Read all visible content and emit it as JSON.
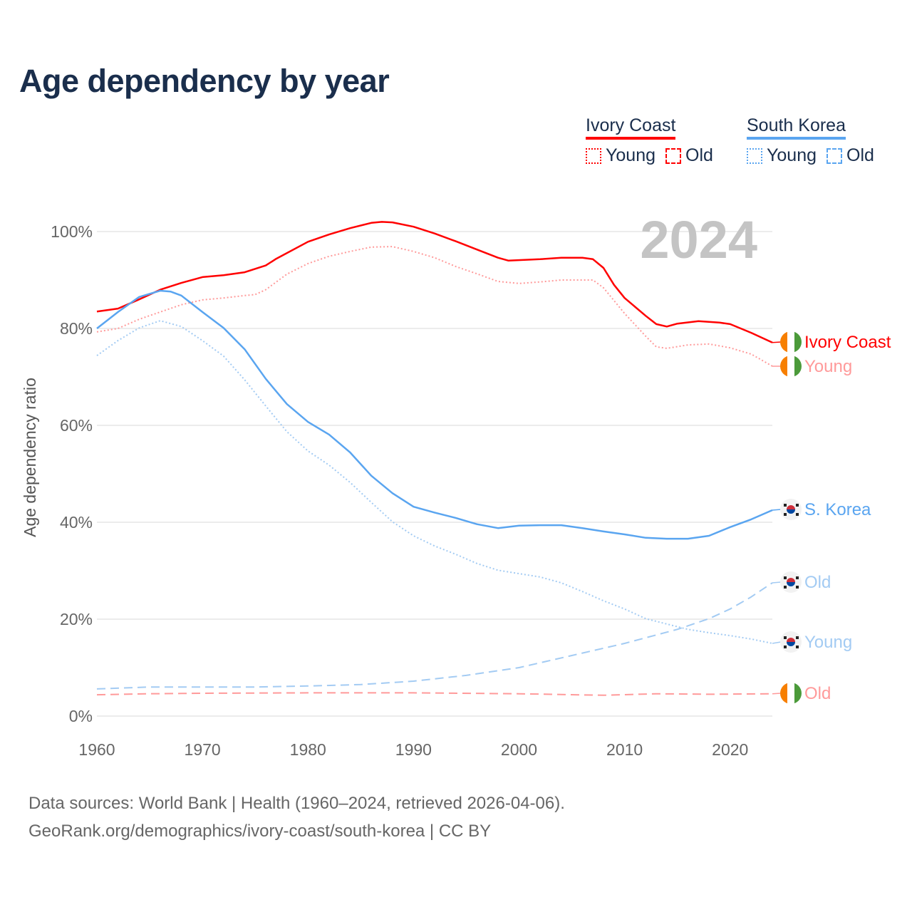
{
  "title": "Age dependency by year",
  "legend": {
    "groups": [
      {
        "country": "Ivory Coast",
        "color": "#ff0000",
        "items": [
          "Young",
          "Old"
        ]
      },
      {
        "country": "South Korea",
        "color": "#5aa5f0",
        "items": [
          "Young",
          "Old"
        ]
      }
    ]
  },
  "footer": {
    "line1": "Data sources: World Bank | Health (1960–2024, retrieved 2026-04-06).",
    "line2": "GeoRank.org/demographics/ivory-coast/south-korea | CC BY"
  },
  "chart_data": {
    "type": "line",
    "title": "Age dependency by year",
    "xlabel": "",
    "ylabel": "Age dependency ratio",
    "year_label": "2024",
    "xlim": [
      1960,
      2024
    ],
    "ylim": [
      0,
      100
    ],
    "x_ticks": [
      "1960",
      "1970",
      "1980",
      "1990",
      "2000",
      "2010",
      "2020"
    ],
    "y_ticks": [
      "0%",
      "20%",
      "40%",
      "60%",
      "80%",
      "100%"
    ],
    "grid": true,
    "series": [
      {
        "name": "Ivory Coast",
        "end_label": "Ivory Coast",
        "flag": "ivory-coast",
        "color": "#ff0000",
        "style": "solid",
        "x": [
          1960,
          1962,
          1964,
          1966,
          1968,
          1970,
          1972,
          1974,
          1976,
          1977,
          1980,
          1982,
          1984,
          1986,
          1987,
          1988,
          1990,
          1992,
          1994,
          1996,
          1998,
          1999,
          2002,
          2004,
          2006,
          2007,
          2008,
          2009,
          2010,
          2012,
          2013,
          2014,
          2015,
          2017,
          2019,
          2020,
          2021,
          2022,
          2024
        ],
        "y": [
          83.5,
          84.1,
          86,
          88,
          89.4,
          90.6,
          91,
          91.6,
          93,
          94.4,
          97.9,
          99.4,
          100.7,
          101.8,
          102,
          101.9,
          101,
          99.6,
          98,
          96.3,
          94.6,
          94,
          94.3,
          94.6,
          94.6,
          94.3,
          92.5,
          89,
          86.3,
          82.6,
          80.9,
          80.4,
          81,
          81.5,
          81.2,
          80.9,
          80,
          79.1,
          77.1
        ]
      },
      {
        "name": "Ivory Coast Young",
        "end_label": "Young",
        "flag": "ivory-coast",
        "color": "#ff9a9a",
        "style": "dotted",
        "x": [
          1960,
          1962,
          1964,
          1966,
          1968,
          1970,
          1972,
          1974,
          1975,
          1976,
          1978,
          1980,
          1982,
          1984,
          1986,
          1988,
          1990,
          1992,
          1994,
          1996,
          1998,
          2000,
          2002,
          2004,
          2007,
          2008,
          2010,
          2012,
          2013,
          2014,
          2016,
          2018,
          2020,
          2022,
          2024
        ],
        "y": [
          79.3,
          80,
          81.9,
          83.4,
          84.9,
          85.9,
          86.3,
          86.8,
          87,
          88,
          91.2,
          93.4,
          94.9,
          95.9,
          96.8,
          96.9,
          95.9,
          94.6,
          92.8,
          91.3,
          89.7,
          89.3,
          89.6,
          90,
          90,
          88.4,
          83.1,
          78.4,
          76.2,
          75.9,
          76.6,
          76.8,
          76,
          74.7,
          72.2
        ]
      },
      {
        "name": "Ivory Coast Old",
        "end_label": "Old",
        "flag": "ivory-coast",
        "color": "#ff9a9a",
        "style": "dashed",
        "x": [
          1960,
          1965,
          1970,
          1980,
          1990,
          2000,
          2008,
          2013,
          2018,
          2024
        ],
        "y": [
          4.4,
          4.6,
          4.7,
          4.8,
          4.8,
          4.6,
          4.3,
          4.6,
          4.5,
          4.6
        ]
      },
      {
        "name": "South Korea",
        "end_label": "S. Korea",
        "flag": "south-korea",
        "color": "#5aa5f0",
        "style": "solid",
        "x": [
          1960,
          1962,
          1964,
          1966,
          1967,
          1968,
          1970,
          1972,
          1974,
          1976,
          1978,
          1980,
          1982,
          1984,
          1986,
          1988,
          1990,
          1992,
          1994,
          1996,
          1998,
          2000,
          2002,
          2004,
          2006,
          2008,
          2010,
          2012,
          2014,
          2016,
          2018,
          2020,
          2022,
          2024
        ],
        "y": [
          80,
          83.4,
          86.5,
          87.8,
          87.6,
          86.8,
          83.4,
          80.1,
          75.7,
          69.6,
          64.4,
          60.7,
          58.1,
          54.4,
          49.6,
          46,
          43.2,
          42,
          40.9,
          39.6,
          38.8,
          39.3,
          39.4,
          39.4,
          38.8,
          38.1,
          37.5,
          36.8,
          36.6,
          36.6,
          37.2,
          39,
          40.6,
          42.5
        ]
      },
      {
        "name": "South Korea Old",
        "end_label": "Old",
        "flag": "south-korea",
        "color": "#a3cbf3",
        "style": "dashed",
        "x": [
          1960,
          1965,
          1970,
          1975,
          1980,
          1985,
          1990,
          1995,
          2000,
          2005,
          2010,
          2015,
          2018,
          2020,
          2022,
          2024
        ],
        "y": [
          5.6,
          6,
          6,
          6,
          6.2,
          6.5,
          7.2,
          8.4,
          10,
          12.5,
          15,
          17.9,
          20.1,
          22.1,
          24.6,
          27.5
        ]
      },
      {
        "name": "South Korea Young",
        "end_label": "Young",
        "flag": "south-korea",
        "color": "#a3cbf3",
        "style": "dotted",
        "x": [
          1960,
          1962,
          1964,
          1966,
          1968,
          1970,
          1972,
          1974,
          1976,
          1978,
          1980,
          1982,
          1984,
          1986,
          1988,
          1990,
          1992,
          1994,
          1996,
          1998,
          2000,
          2002,
          2004,
          2006,
          2008,
          2010,
          2012,
          2014,
          2016,
          2018,
          2020,
          2022,
          2024
        ],
        "y": [
          74.4,
          77.5,
          80.1,
          81.6,
          80.4,
          77.5,
          74.3,
          69.4,
          64,
          58.7,
          54.7,
          51.8,
          48.2,
          44.1,
          40.1,
          37.2,
          35.1,
          33.4,
          31.5,
          30.1,
          29.4,
          28.7,
          27.5,
          25.7,
          23.8,
          22.1,
          20.1,
          19,
          17.9,
          17.2,
          16.6,
          15.9,
          15
        ]
      }
    ]
  }
}
